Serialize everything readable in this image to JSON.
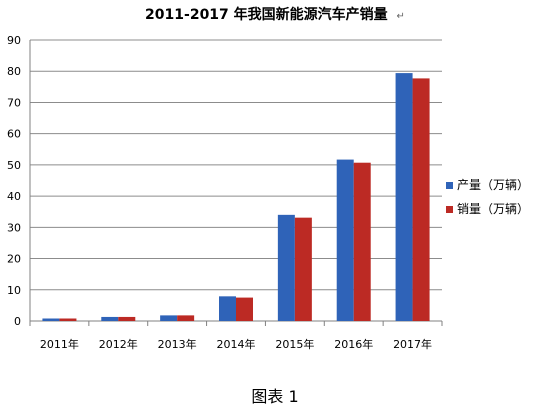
{
  "chart_data": {
    "type": "bar",
    "title": "2011-2017 年我国新能源汽车产销量",
    "title_mark": "↵",
    "categories": [
      "2011年",
      "2012年",
      "2013年",
      "2014年",
      "2015年",
      "2016年",
      "2017年"
    ],
    "series": [
      {
        "name": "产量（万辆）",
        "color": "#2f63b8",
        "values": [
          0.8,
          1.3,
          1.8,
          7.9,
          34.0,
          51.7,
          79.4
        ]
      },
      {
        "name": "销量（万辆）",
        "color": "#bc2a24",
        "values": [
          0.8,
          1.3,
          1.8,
          7.5,
          33.1,
          50.7,
          77.7
        ]
      }
    ],
    "ylim": [
      0,
      90
    ],
    "yticks": [
      0,
      10,
      20,
      30,
      40,
      50,
      60,
      70,
      80,
      90
    ],
    "grid": true,
    "legend_position": "right"
  },
  "caption": "图表 1"
}
